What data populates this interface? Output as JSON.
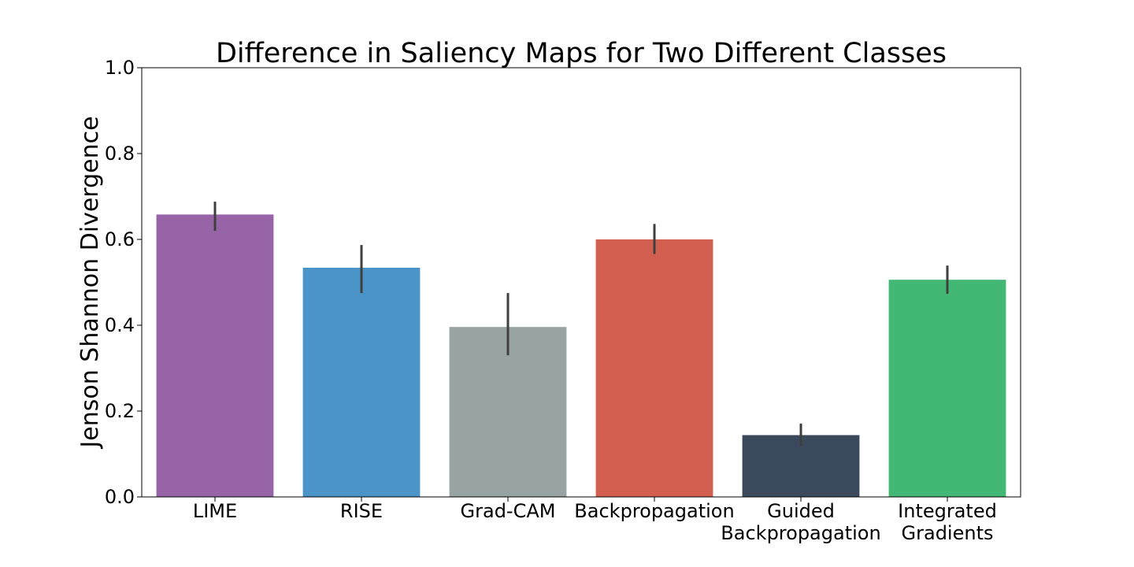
{
  "chart_data": {
    "type": "bar",
    "title": "Difference in Saliency Maps for Two Different Classes",
    "xlabel": "",
    "ylabel": "Jenson Shannon Divergence",
    "ylim": [
      0.0,
      1.0
    ],
    "yticks": [
      "0.0",
      "0.2",
      "0.4",
      "0.6",
      "0.8",
      "1.0"
    ],
    "grid": false,
    "categories": [
      [
        "LIME"
      ],
      [
        "RISE"
      ],
      [
        "Grad-CAM"
      ],
      [
        "Backpropagation"
      ],
      [
        "Guided",
        "Backpropagation"
      ],
      [
        "Integrated",
        "Gradients"
      ]
    ],
    "values": [
      0.658,
      0.534,
      0.396,
      0.6,
      0.144,
      0.506
    ],
    "error_low": [
      0.62,
      0.475,
      0.33,
      0.566,
      0.118,
      0.473
    ],
    "error_high": [
      0.688,
      0.587,
      0.475,
      0.636,
      0.171,
      0.539
    ],
    "colors": [
      "#9764a8",
      "#4a94c8",
      "#98a3a4",
      "#d35f51",
      "#3a4a5c",
      "#43b874"
    ],
    "error_color": "#3f3f3f"
  }
}
